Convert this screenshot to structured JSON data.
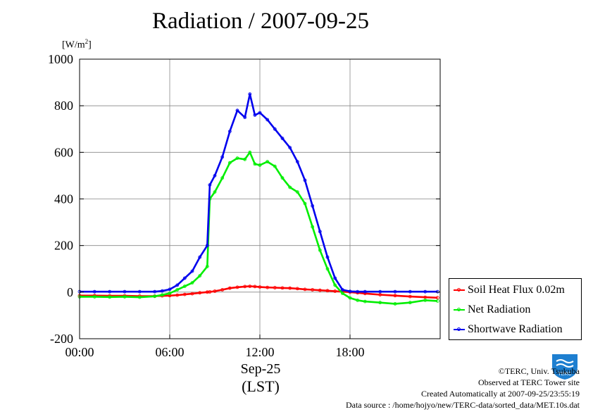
{
  "title": "Radiation / 2007-09-25",
  "y_unit": "[W/m",
  "y_unit_sup": "2",
  "y_unit_close": "]",
  "x_date_label": "Sep-25",
  "x_zone_label": "(LST)",
  "footer": {
    "copyright": "©TERC, Univ. Tsukuba",
    "observed": "Observed at TERC Tower site",
    "created": "Created Automatically at 2007-09-25/23:55:19",
    "source": "Data source : /home/hojyo/new/TERC-data/sorted_data/MET.10s.dat"
  },
  "logo_text": "TERC",
  "chart_data": {
    "type": "line",
    "title": "Radiation / 2007-09-25",
    "xlabel": "Sep-25 (LST)",
    "ylabel": "[W/m2]",
    "ylim": [
      -200,
      1000
    ],
    "xlim": [
      "00:00",
      "24:00"
    ],
    "x_ticks": [
      "00:00",
      "06:00",
      "12:00",
      "18:00"
    ],
    "y_ticks": [
      "-200",
      "0",
      "200",
      "400",
      "600",
      "800",
      "1000"
    ],
    "grid": true,
    "legend_position": "bottom-right outside",
    "x": [
      "00:00",
      "01:00",
      "02:00",
      "03:00",
      "04:00",
      "05:00",
      "05:30",
      "06:00",
      "06:30",
      "07:00",
      "07:30",
      "08:00",
      "08:30",
      "08:40",
      "09:00",
      "09:30",
      "10:00",
      "10:30",
      "11:00",
      "11:20",
      "11:40",
      "12:00",
      "12:30",
      "13:00",
      "13:30",
      "14:00",
      "14:30",
      "15:00",
      "15:30",
      "16:00",
      "16:30",
      "17:00",
      "17:30",
      "18:00",
      "18:30",
      "19:00",
      "20:00",
      "21:00",
      "22:00",
      "23:00",
      "23:50"
    ],
    "series": [
      {
        "name": "Soil Heat Flux 0.02m",
        "color": "#ff0000",
        "values": [
          -15,
          -15,
          -16,
          -16,
          -17,
          -17,
          -16,
          -15,
          -13,
          -10,
          -7,
          -3,
          0,
          1,
          4,
          10,
          17,
          21,
          24,
          25,
          24,
          22,
          20,
          19,
          18,
          17,
          15,
          12,
          10,
          8,
          6,
          4,
          2,
          0,
          -3,
          -6,
          -11,
          -15,
          -19,
          -22,
          -24
        ]
      },
      {
        "name": "Net Radiation",
        "color": "#00ee00",
        "values": [
          -20,
          -20,
          -21,
          -20,
          -22,
          -18,
          -12,
          -5,
          10,
          25,
          40,
          70,
          110,
          400,
          430,
          490,
          555,
          575,
          570,
          600,
          550,
          545,
          560,
          540,
          490,
          450,
          430,
          380,
          280,
          180,
          100,
          30,
          -5,
          -25,
          -35,
          -40,
          -45,
          -50,
          -45,
          -35,
          -38
        ]
      },
      {
        "name": "Shortwave Radiation",
        "color": "#0000ee",
        "values": [
          2,
          2,
          2,
          2,
          2,
          2,
          5,
          12,
          30,
          60,
          90,
          150,
          200,
          460,
          500,
          580,
          690,
          780,
          750,
          850,
          760,
          770,
          740,
          700,
          660,
          620,
          560,
          480,
          370,
          260,
          150,
          60,
          10,
          3,
          2,
          2,
          2,
          2,
          2,
          2,
          2
        ]
      }
    ]
  }
}
